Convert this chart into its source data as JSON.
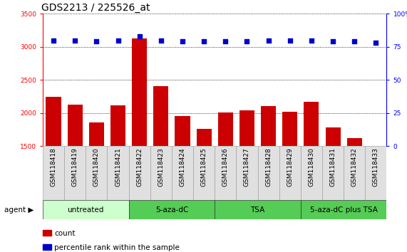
{
  "title": "GDS2213 / 225526_at",
  "samples": [
    "GSM118418",
    "GSM118419",
    "GSM118420",
    "GSM118421",
    "GSM118422",
    "GSM118423",
    "GSM118424",
    "GSM118425",
    "GSM118426",
    "GSM118427",
    "GSM118428",
    "GSM118429",
    "GSM118430",
    "GSM118431",
    "GSM118432",
    "GSM118433"
  ],
  "counts": [
    2250,
    2130,
    1860,
    2120,
    3130,
    2410,
    1960,
    1760,
    2010,
    2040,
    2110,
    2020,
    2170,
    1780,
    1620,
    1500
  ],
  "percentile_ranks": [
    80,
    80,
    79,
    80,
    83,
    80,
    79,
    79,
    79,
    79,
    80,
    80,
    80,
    79,
    79,
    78
  ],
  "bar_color": "#cc0000",
  "dot_color": "#0000cc",
  "ylim_left": [
    1500,
    3500
  ],
  "ylim_right": [
    0,
    100
  ],
  "yticks_left": [
    1500,
    2000,
    2500,
    3000,
    3500
  ],
  "yticks_right": [
    0,
    25,
    50,
    75,
    100
  ],
  "groups": [
    {
      "label": "untreated",
      "start": 0,
      "end": 4,
      "color": "#ccffcc"
    },
    {
      "label": "5-aza-dC",
      "start": 4,
      "end": 8,
      "color": "#44cc44"
    },
    {
      "label": "TSA",
      "start": 8,
      "end": 12,
      "color": "#44cc44"
    },
    {
      "label": "5-aza-dC plus TSA",
      "start": 12,
      "end": 16,
      "color": "#44cc44"
    }
  ],
  "agent_label": "agent",
  "legend_count_label": "count",
  "legend_percentile_label": "percentile rank within the sample",
  "title_fontsize": 10,
  "tick_fontsize": 6.5,
  "label_fontsize": 7.5,
  "group_fontsize": 7.5
}
